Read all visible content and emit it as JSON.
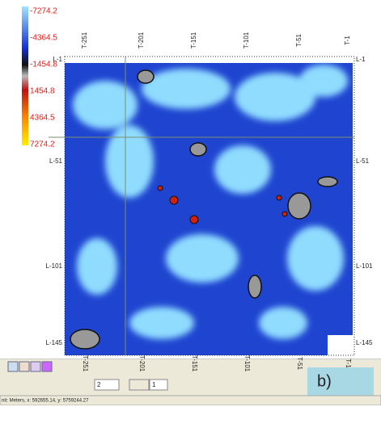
{
  "colorbar": {
    "labels": [
      "-7274.2",
      "-4364.5",
      "-1454.8",
      "1454.8",
      "4364.5",
      "7274.2"
    ]
  },
  "map": {
    "top_labels": [
      "T-251",
      "T-201",
      "T-151",
      "T-101",
      "T-51",
      "T-1"
    ],
    "bottom_labels": [
      "T-251",
      "T-201",
      "T-151",
      "T-101",
      "T-51",
      "T-1"
    ],
    "left_labels": [
      "L-1",
      "L-51",
      "L-101",
      "L-145"
    ],
    "right_labels": [
      "L-1",
      "L-51",
      "L-101",
      "L-145"
    ]
  },
  "toolbar": {
    "spin_value": "2",
    "page_value": "1"
  },
  "status_bar": {
    "text": "nit: Meters, x: 592655.14, y: 5759244.27"
  },
  "panel_label": "b)"
}
